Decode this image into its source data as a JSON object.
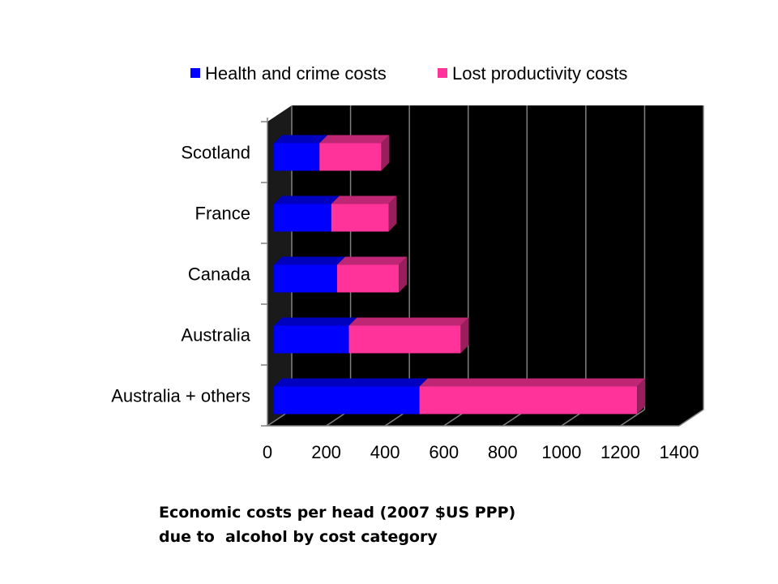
{
  "chart_data": {
    "type": "bar",
    "orientation": "horizontal",
    "stacked": true,
    "style": "3d",
    "categories": [
      "Scotland",
      "France",
      "Canada",
      "Australia",
      "Australia + others"
    ],
    "series": [
      {
        "name": "Health and crime costs",
        "color": "#0000ff",
        "values": [
          155,
          195,
          215,
          255,
          495
        ]
      },
      {
        "name": "Lost productivity costs",
        "color": "#ff3399",
        "values": [
          210,
          195,
          210,
          380,
          740
        ]
      }
    ],
    "xticks": [
      "0",
      "200",
      "400",
      "600",
      "800",
      "1000",
      "1200",
      "1400"
    ],
    "xlim": [
      0,
      1400
    ],
    "grid": true,
    "legend_position": "top",
    "plot_background": "#000000",
    "title": ""
  },
  "caption": {
    "line1": "Economic costs per head (2007 $US PPP)",
    "line2": "due to  alcohol by cost category"
  }
}
